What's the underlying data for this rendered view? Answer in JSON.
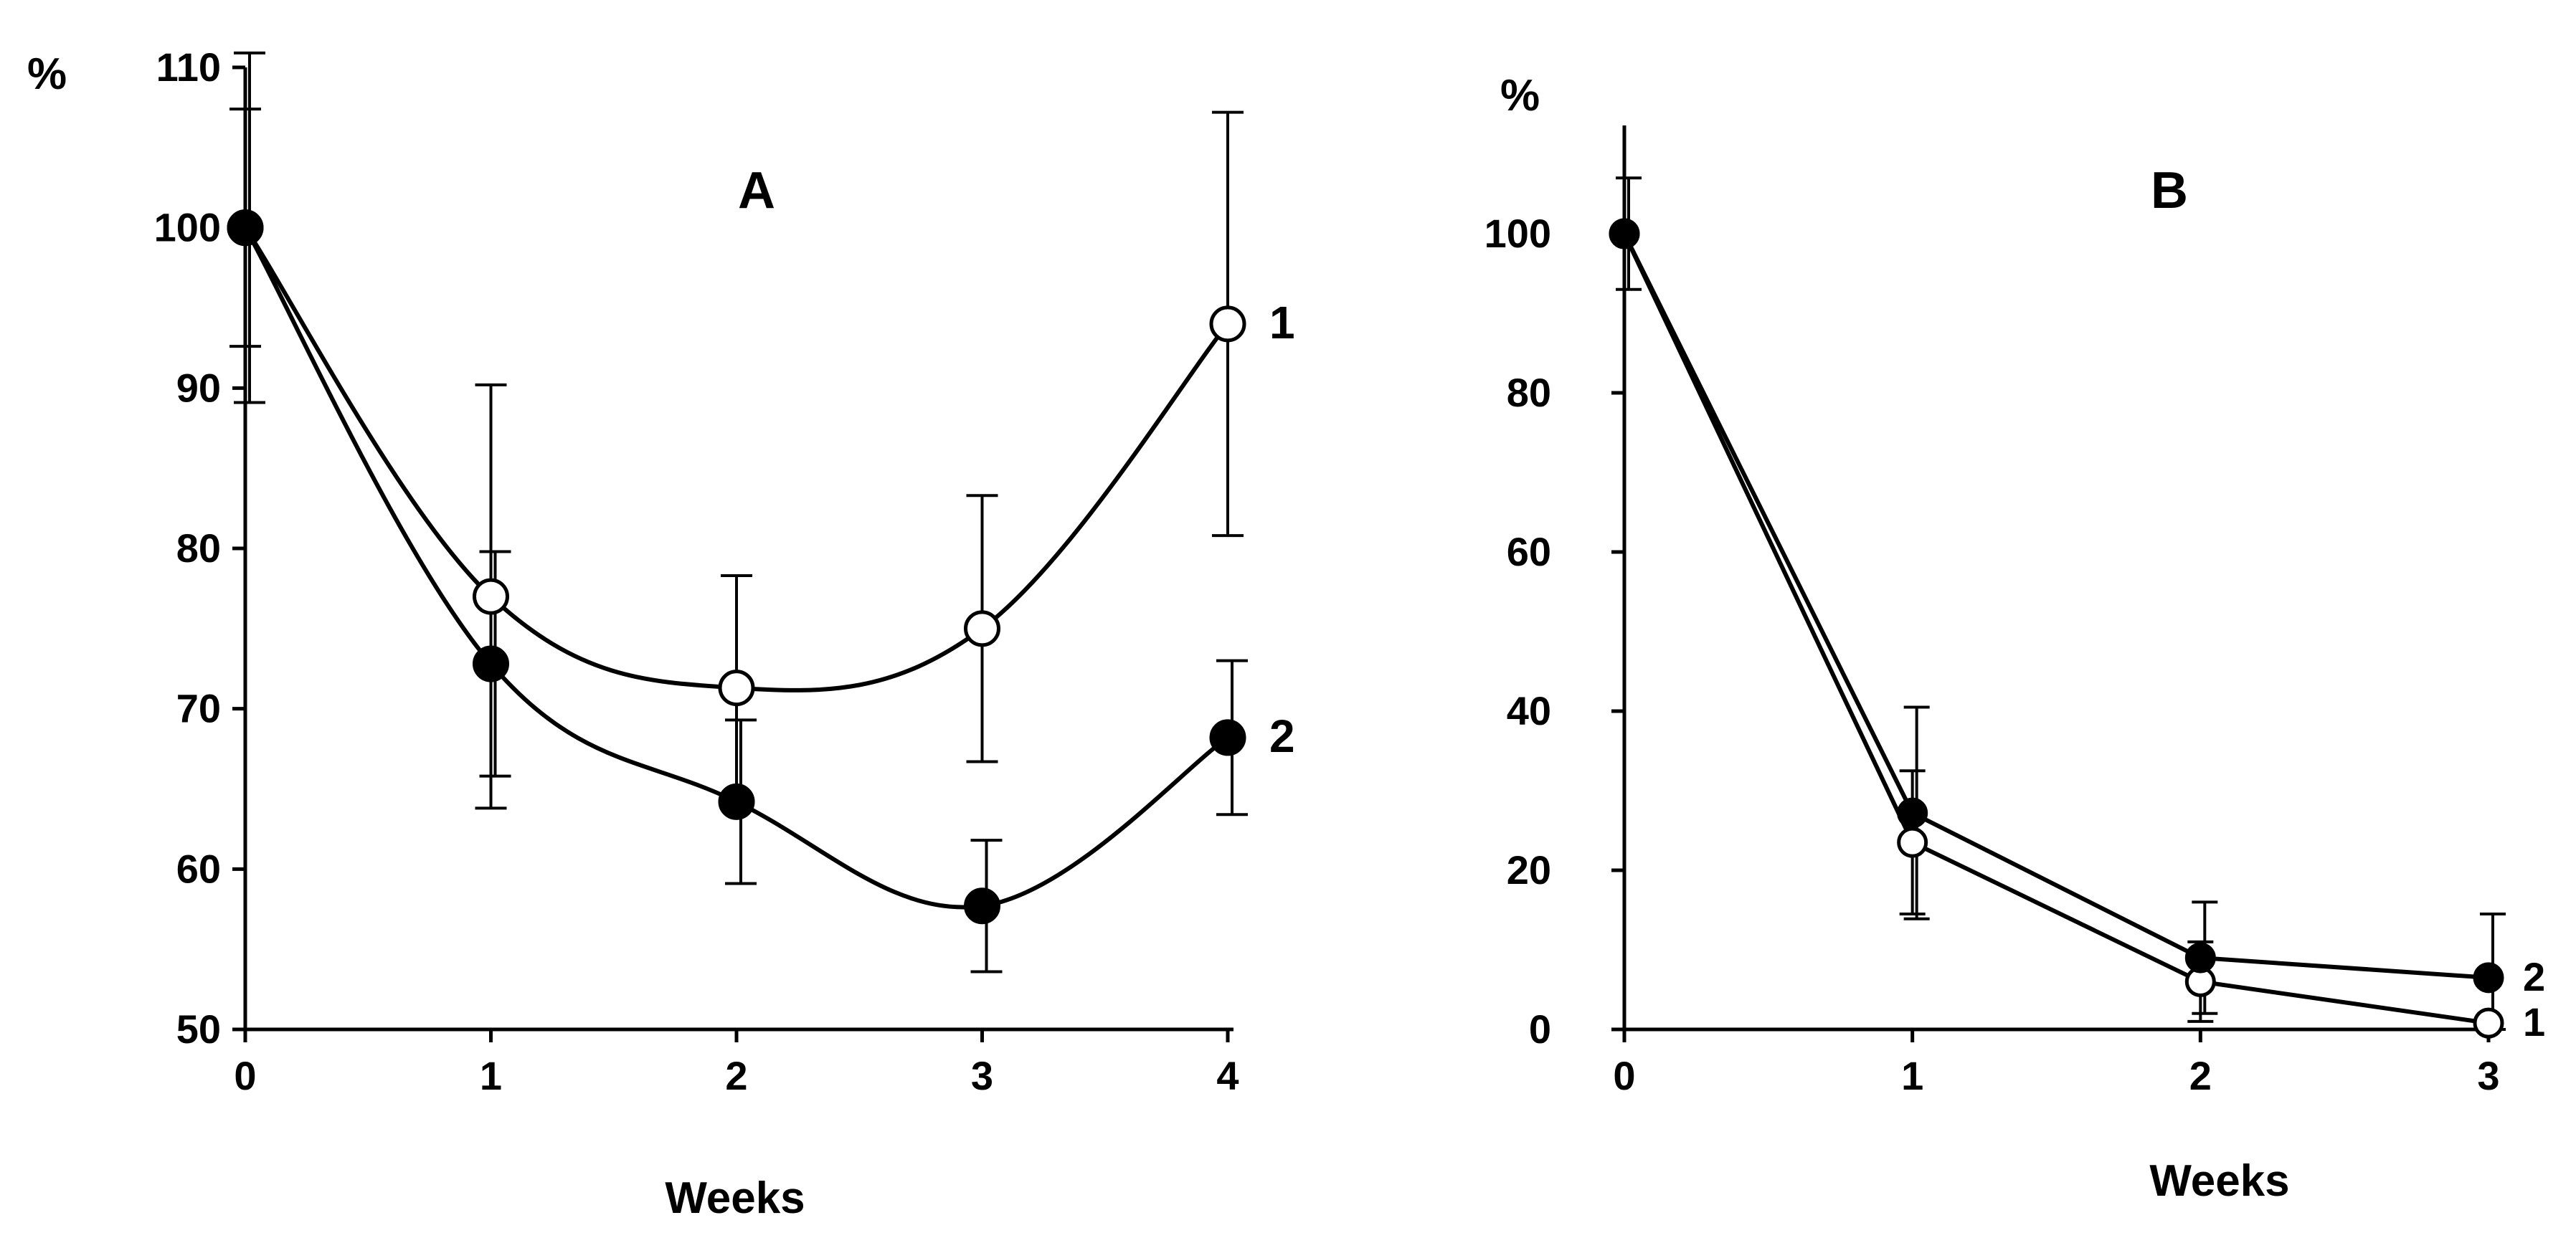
{
  "chart_data": [
    {
      "type": "line",
      "panel": "A",
      "title": "A",
      "xlabel": "Weeks",
      "ylabel": "%",
      "x": [
        0,
        1,
        2,
        3,
        4
      ],
      "xticks": [
        "0",
        "1",
        "2",
        "3",
        "4"
      ],
      "yticks": [
        "50",
        "60",
        "70",
        "80",
        "90",
        "100",
        "110"
      ],
      "xlim": [
        0,
        4
      ],
      "ylim": [
        50,
        110
      ],
      "smooth": true,
      "series": [
        {
          "name": "1",
          "marker": "open",
          "values": [
            100,
            77,
            71.3,
            75,
            94
          ],
          "error": [
            7.4,
            13.2,
            7,
            8.3,
            13.2
          ]
        },
        {
          "name": "2",
          "marker": "filled",
          "values": [
            100,
            72.8,
            64.2,
            57.7,
            68.2
          ],
          "error": [
            10.9,
            7,
            5.1,
            4.1,
            4.8
          ]
        }
      ]
    },
    {
      "type": "line",
      "panel": "B",
      "title": "B",
      "xlabel": "Weeks",
      "ylabel": "%",
      "x": [
        0,
        1,
        2,
        3
      ],
      "xticks": [
        "0",
        "1",
        "2",
        "3"
      ],
      "yticks": [
        "0",
        "20",
        "40",
        "60",
        "80",
        "100"
      ],
      "xlim": [
        0,
        3
      ],
      "ylim": [
        0,
        110
      ],
      "smooth": false,
      "series": [
        {
          "name": "1",
          "marker": "open",
          "values": [
            100,
            23.5,
            6,
            0.8
          ],
          "error": [
            0,
            9,
            5,
            0
          ]
        },
        {
          "name": "2",
          "marker": "filled",
          "values": [
            100,
            27.2,
            9,
            6.5
          ],
          "error": [
            7,
            13.3,
            7,
            8
          ]
        }
      ]
    }
  ]
}
